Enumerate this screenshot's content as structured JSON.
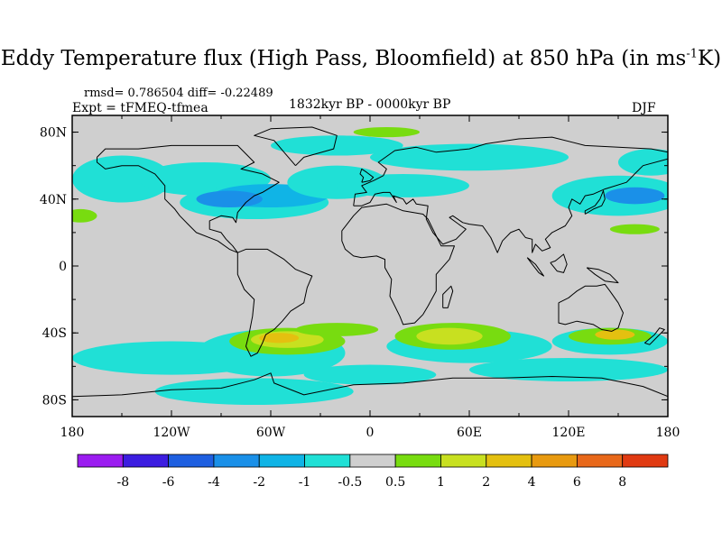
{
  "title": {
    "main": "Eddy Temperature flux (High Pass, Bloomfield) at 850 hPa (in ms",
    "sup": "-1",
    "tail": "K)"
  },
  "stats": "rmsd= 0.786504 diff= -0.22489",
  "expt": "Expt = tFMEQ-tfmea",
  "period": "1832kyr BP - 0000kyr BP",
  "season": "DJF",
  "axes": {
    "lat_labels": [
      "80N",
      "40N",
      "0",
      "40S",
      "80S"
    ],
    "lon_labels": [
      "180",
      "120W",
      "60W",
      "0",
      "60E",
      "120E",
      "180"
    ]
  },
  "colorbar": {
    "colors": [
      "#9b1cf0",
      "#3c1de0",
      "#1e5fe0",
      "#1a90e8",
      "#10b4e6",
      "#20e0d6",
      "#cfcfcf",
      "#78dc10",
      "#c8e020",
      "#e4c010",
      "#e89a10",
      "#e8681a",
      "#e03a12"
    ],
    "labels": [
      "-8",
      "-6",
      "-4",
      "-2",
      "-1",
      "-0.5",
      "0.5",
      "1",
      "2",
      "4",
      "6",
      "8"
    ]
  },
  "map_colors": {
    "land_bg": "#cfcfcf",
    "coast": "#000000"
  }
}
